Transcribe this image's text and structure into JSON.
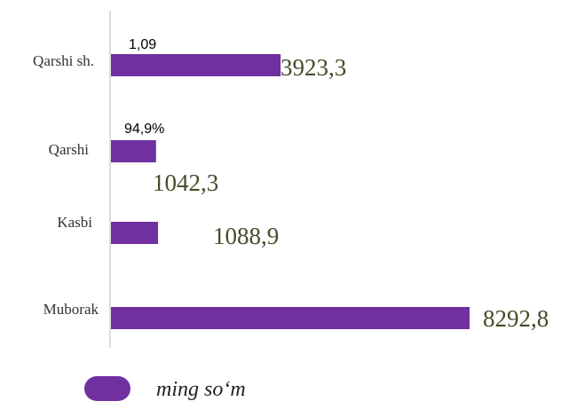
{
  "chart_data": {
    "type": "bar",
    "orientation": "horizontal",
    "categories": [
      "Qarshi sh.",
      "Qarshi",
      "Kasbi",
      "Muborak"
    ],
    "series": [
      {
        "name": "ming so‘m",
        "values": [
          3923.3,
          1042.3,
          1088.9,
          8292.8
        ]
      }
    ],
    "value_labels": [
      "3923,3",
      "1042,3",
      "1088,9",
      "8292,8"
    ],
    "annotations": [
      {
        "category": "Qarshi sh.",
        "text": "1,09"
      },
      {
        "category": "Qarshi",
        "text": "94,9%"
      }
    ],
    "xlim": [
      0,
      8292.8
    ],
    "grid": false,
    "legend_position": "bottom"
  },
  "colors": {
    "bar": "#7030a0",
    "value_label": "#4a4a2a",
    "category_label": "#333333",
    "annotation": "#000000",
    "axis": "#d0d0d0"
  }
}
